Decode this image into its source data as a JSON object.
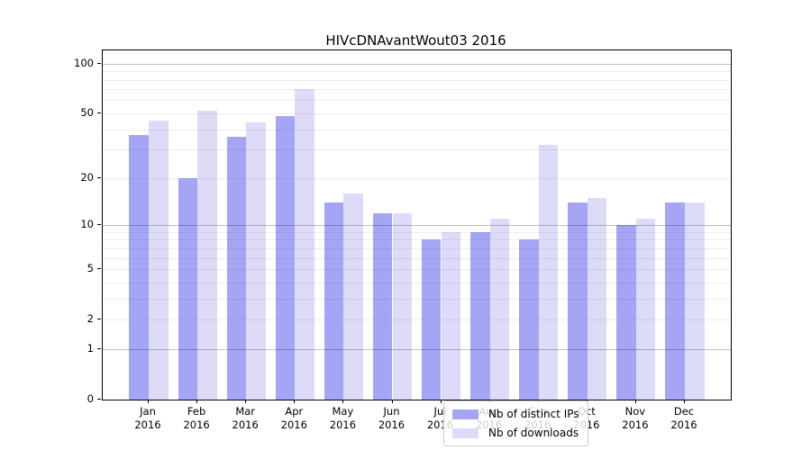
{
  "figure": {
    "title": "HIVcDNAvantWout03 2016"
  },
  "chart_data": {
    "type": "bar",
    "title": "HIVcDNAvantWout03 2016",
    "categories": [
      "Jan",
      "Feb",
      "Mar",
      "Apr",
      "May",
      "Jun",
      "Jul",
      "Aug",
      "Sep",
      "Oct",
      "Nov",
      "Dec"
    ],
    "category_year": "2016",
    "series": [
      {
        "name": "Nb of distinct IPs",
        "color": "#a5a5f5",
        "values": [
          37,
          20,
          36,
          48,
          14,
          12,
          8,
          9,
          8,
          14,
          10,
          14
        ]
      },
      {
        "name": "Nb of downloads",
        "color": "#dcdcf9",
        "values": [
          45,
          52,
          44,
          70,
          16,
          12,
          9,
          11,
          32,
          15,
          11,
          14
        ]
      }
    ],
    "xlabel": "",
    "ylabel": "",
    "yscale": "log1p",
    "ylim": [
      0,
      120
    ],
    "yticks": [
      0,
      1,
      2,
      5,
      10,
      20,
      50,
      100
    ],
    "major_gridlines": [
      1,
      10,
      100
    ],
    "minor_gridlines": [
      2,
      3,
      4,
      5,
      6,
      7,
      8,
      9,
      20,
      30,
      40,
      50,
      60,
      70,
      80,
      90
    ],
    "grid": true,
    "legend_position": "lower-center"
  }
}
